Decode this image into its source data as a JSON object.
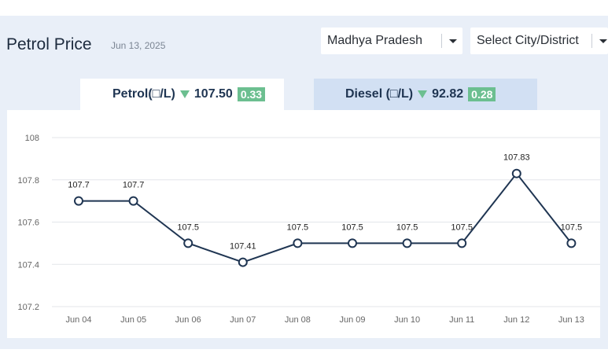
{
  "header": {
    "title": "Petrol Price",
    "date": "Jun 13, 2025"
  },
  "selectors": {
    "state": "Madhya Pradesh",
    "city": "Select City/District"
  },
  "tabs": {
    "petrol": {
      "label": "Petrol(□/L)",
      "price": "107.50",
      "change": "0.33"
    },
    "diesel": {
      "label": "Diesel (□/L)",
      "price": "92.82",
      "change": "0.28"
    }
  },
  "colors": {
    "line": "#1f3552",
    "decrease": "#6cbf90",
    "grid": "#e3e6ea",
    "tick": "#666666"
  },
  "chart_data": {
    "type": "line",
    "title": "",
    "xlabel": "",
    "ylabel": "",
    "categories": [
      "Jun 04",
      "Jun 05",
      "Jun 06",
      "Jun 07",
      "Jun 08",
      "Jun 09",
      "Jun 10",
      "Jun 11",
      "Jun 12",
      "Jun 13"
    ],
    "series": [
      {
        "name": "Petrol",
        "values": [
          107.7,
          107.7,
          107.5,
          107.41,
          107.5,
          107.5,
          107.5,
          107.5,
          107.83,
          107.5
        ],
        "labels": [
          "107.7",
          "107.7",
          "107.5",
          "107.41",
          "107.5",
          "107.5",
          "107.5",
          "107.5",
          "107.83",
          "107.5"
        ]
      }
    ],
    "yticks": [
      107.2,
      107.4,
      107.6,
      107.8,
      108
    ],
    "ytick_labels": [
      "107.2",
      "107.4",
      "107.6",
      "107.8",
      "108"
    ],
    "ylim": [
      107.2,
      108
    ],
    "grid": true
  }
}
